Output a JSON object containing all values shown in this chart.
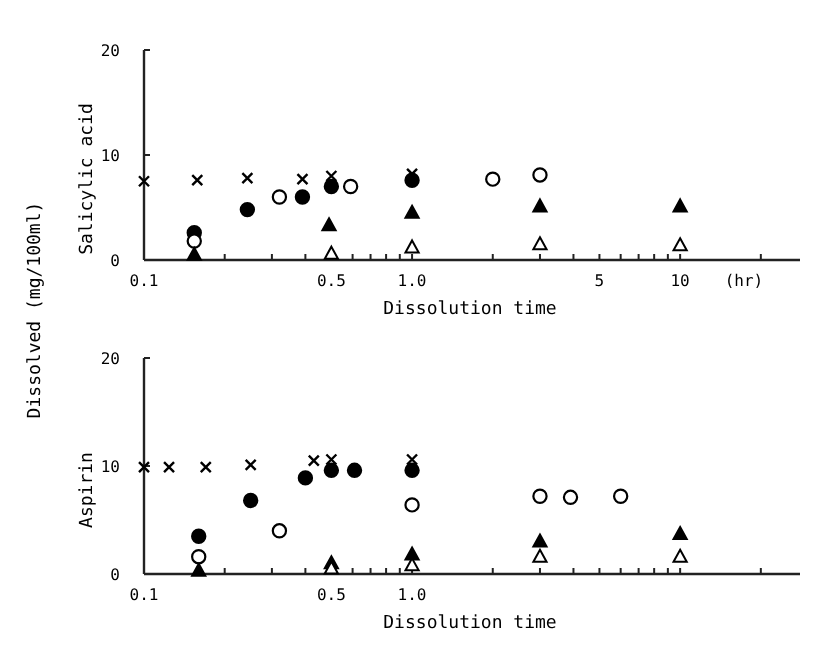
{
  "chart_data": [
    {
      "type": "scatter",
      "ylabel": "Salicylic acid",
      "xlabel": "Dissolution time",
      "annotations": [
        "(hr)"
      ],
      "log": "x",
      "xlim": [
        0.1,
        28
      ],
      "ylim": [
        0,
        20
      ],
      "yticks": [
        0,
        10,
        20
      ],
      "grid": false,
      "xticks": [
        0.1,
        {
          "value": 0.2,
          "label": null
        },
        {
          "value": 0.3,
          "label": null
        },
        {
          "value": 0.4,
          "label": null
        },
        0.5,
        {
          "value": 0.6,
          "label": null
        },
        {
          "value": 0.7,
          "label": null
        },
        {
          "value": 0.8,
          "label": null
        },
        {
          "value": 0.9,
          "label": null
        },
        {
          "value": 1,
          "label": "1.0"
        },
        {
          "value": 2,
          "label": null
        },
        {
          "value": 3,
          "label": null
        },
        {
          "value": 4,
          "label": null
        },
        5,
        {
          "value": 6,
          "label": null
        },
        {
          "value": 7,
          "label": null
        },
        {
          "value": 8,
          "label": null
        },
        {
          "value": 9,
          "label": null
        },
        10,
        {
          "value": 20,
          "label": null
        }
      ],
      "series": [
        {
          "marker": "cross",
          "color": "#000000",
          "x": [
            0.1,
            0.158,
            0.243,
            0.39,
            0.5,
            1.0
          ],
          "values": [
            7.5,
            7.6,
            7.8,
            7.7,
            8.0,
            8.2
          ]
        },
        {
          "marker": "circle",
          "color": "#000000",
          "x": [
            0.154,
            0.243,
            0.39,
            0.5,
            1.0
          ],
          "values": [
            2.6,
            4.8,
            6.0,
            7.0,
            7.6
          ]
        },
        {
          "marker": "circle-open",
          "color": "#000000",
          "x": [
            0.154,
            0.32,
            0.59,
            2.0,
            3.0
          ],
          "values": [
            1.8,
            6.0,
            7.0,
            7.7,
            8.1
          ]
        },
        {
          "marker": "triangle",
          "color": "#000000",
          "x": [
            0.154,
            0.49,
            1.0,
            3.0,
            10
          ],
          "values": [
            0.5,
            3.3,
            4.5,
            5.1,
            5.1
          ]
        },
        {
          "marker": "triangle-open",
          "color": "#000000",
          "x": [
            0.5,
            1.0,
            3.0,
            10
          ],
          "values": [
            0.6,
            1.2,
            1.5,
            1.4
          ]
        }
      ]
    },
    {
      "type": "scatter",
      "ylabel": "Aspirin",
      "xlabel": "Dissolution time",
      "annotations": [
        "Dissolved (mg/100ml)"
      ],
      "log": "x",
      "xlim": [
        0.1,
        28
      ],
      "ylim": [
        0,
        20
      ],
      "yticks": [
        0,
        10,
        20
      ],
      "grid": false,
      "xticks": [
        0.1,
        {
          "value": 0.2,
          "label": null
        },
        {
          "value": 0.3,
          "label": null
        },
        {
          "value": 0.4,
          "label": null
        },
        0.5,
        {
          "value": 0.6,
          "label": null
        },
        {
          "value": 0.7,
          "label": null
        },
        {
          "value": 0.8,
          "label": null
        },
        {
          "value": 0.9,
          "label": null
        },
        {
          "value": 1,
          "label": "1.0"
        },
        {
          "value": 2,
          "label": null
        },
        {
          "value": 3,
          "label": null
        },
        {
          "value": 4,
          "label": null
        },
        {
          "value": 5,
          "label": null
        },
        {
          "value": 6,
          "label": null
        },
        {
          "value": 7,
          "label": null
        },
        {
          "value": 8,
          "label": null
        },
        {
          "value": 9,
          "label": null
        },
        {
          "value": 10,
          "label": null
        },
        {
          "value": 20,
          "label": null
        }
      ],
      "series": [
        {
          "marker": "cross",
          "color": "#000000",
          "x": [
            0.1,
            0.124,
            0.17,
            0.25,
            0.43,
            0.5,
            1.0
          ],
          "values": [
            9.9,
            9.9,
            9.9,
            10.1,
            10.5,
            10.6,
            10.6
          ]
        },
        {
          "marker": "circle",
          "color": "#000000",
          "x": [
            0.16,
            0.25,
            0.4,
            0.5,
            0.61,
            1.0
          ],
          "values": [
            3.5,
            6.8,
            8.9,
            9.6,
            9.6,
            9.6
          ]
        },
        {
          "marker": "circle-open",
          "color": "#000000",
          "x": [
            0.16,
            0.32,
            1.0,
            3.0,
            3.9,
            6.0
          ],
          "values": [
            1.6,
            4.0,
            6.4,
            7.2,
            7.1,
            7.2
          ]
        },
        {
          "marker": "triangle",
          "color": "#000000",
          "x": [
            0.16,
            0.5,
            1.0,
            3.0,
            10
          ],
          "values": [
            0.3,
            1.0,
            1.8,
            3.0,
            3.7
          ]
        },
        {
          "marker": "triangle-open",
          "color": "#000000",
          "x": [
            0.5,
            1.0,
            3.0,
            10
          ],
          "values": [
            0.5,
            0.8,
            1.6,
            1.6
          ]
        }
      ]
    }
  ]
}
